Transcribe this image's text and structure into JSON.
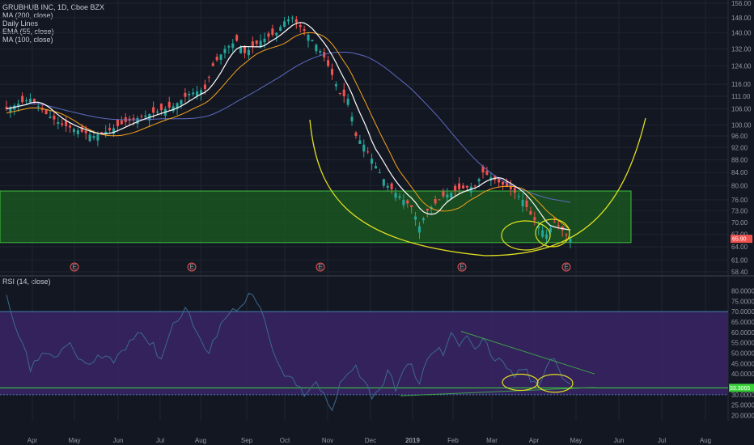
{
  "header": {
    "title": "GRUBHUB INC, 1D, Cboe BZX",
    "indicators": [
      "MA (200, close)",
      "Daily Lines",
      "EMA (55, close)",
      "MA (100, close)"
    ]
  },
  "rsi_panel": {
    "label": "RSI (14, close)"
  },
  "colors": {
    "background": "#131722",
    "up": "#26a69a",
    "down": "#ef5350",
    "green_zone": "#1b5e20",
    "rsi_band": "#3a2566",
    "yellow": "#e0e020",
    "ma200": "#ffffff",
    "ema55": "#f7a21b",
    "ma100": "#5c6bc0",
    "rsi_line": "#3d6a8f"
  },
  "chart_data": [
    {
      "type": "candlestick",
      "title": "GRUBHUB INC, 1D, Cboe BZX",
      "x_ticks": [
        "Apr",
        "May",
        "Jun",
        "Jul",
        "Aug",
        "Sep",
        "Oct",
        "Nov",
        "Dec",
        "2019",
        "Feb",
        "Mar",
        "Apr",
        "May",
        "Jun",
        "Jul",
        "Aug"
      ],
      "y_ticks": [
        "156.00",
        "148.00",
        "140.00",
        "132.00",
        "124.00",
        "116.00",
        "111.00",
        "106.00",
        "100.00",
        "96.00",
        "92.00",
        "88.00",
        "84.00",
        "80.00",
        "76.00",
        "73.00",
        "70.00",
        "67.00",
        "64.00",
        "61.00",
        "58.40"
      ],
      "ylim": [
        58.4,
        156
      ],
      "log_scale": true,
      "last_price": "65.90",
      "support_zone": [
        65.0,
        78.5
      ],
      "earnings_markers": [
        "E",
        "E",
        "E",
        "E",
        "E"
      ],
      "price_path": [
        [
          0,
          106
        ],
        [
          6,
          110
        ],
        [
          10,
          104
        ],
        [
          14,
          100
        ],
        [
          18,
          98
        ],
        [
          22,
          96
        ],
        [
          26,
          98
        ],
        [
          30,
          101
        ],
        [
          36,
          104
        ],
        [
          42,
          107
        ],
        [
          46,
          112
        ],
        [
          50,
          114
        ],
        [
          52,
          124
        ],
        [
          55,
          132
        ],
        [
          58,
          136
        ],
        [
          60,
          130
        ],
        [
          64,
          136
        ],
        [
          68,
          140
        ],
        [
          70,
          146
        ],
        [
          72,
          148
        ],
        [
          74,
          143
        ],
        [
          76,
          139
        ],
        [
          78,
          134
        ],
        [
          80,
          128
        ],
        [
          82,
          120
        ],
        [
          84,
          112
        ],
        [
          86,
          110
        ],
        [
          88,
          96
        ],
        [
          90,
          93
        ],
        [
          93,
          86
        ],
        [
          96,
          80
        ],
        [
          99,
          77
        ],
        [
          102,
          74
        ],
        [
          104,
          69
        ],
        [
          106,
          73
        ],
        [
          110,
          77
        ],
        [
          114,
          79
        ],
        [
          118,
          80
        ],
        [
          120,
          84
        ],
        [
          124,
          81
        ],
        [
          127,
          79
        ],
        [
          130,
          76
        ],
        [
          132,
          72
        ],
        [
          134,
          69
        ],
        [
          136,
          67
        ],
        [
          138,
          70
        ],
        [
          140,
          68
        ],
        [
          142,
          65.9
        ]
      ]
    },
    {
      "type": "line",
      "title": "RSI (14, close)",
      "y_ticks": [
        "80.0000",
        "75.0000",
        "70.0000",
        "65.0000",
        "60.0000",
        "55.0000",
        "50.0000",
        "45.0000",
        "40.0000",
        "35.0000",
        "30.0000",
        "25.0000",
        "20.0000"
      ],
      "ylim": [
        17.5,
        82.5
      ],
      "levels": [
        70,
        30
      ],
      "current_value": "33.3065",
      "values_path": [
        [
          0,
          79
        ],
        [
          3,
          60
        ],
        [
          6,
          42
        ],
        [
          9,
          52
        ],
        [
          12,
          46
        ],
        [
          15,
          55
        ],
        [
          18,
          48
        ],
        [
          21,
          43
        ],
        [
          24,
          50
        ],
        [
          27,
          46
        ],
        [
          30,
          53
        ],
        [
          33,
          62
        ],
        [
          36,
          55
        ],
        [
          39,
          48
        ],
        [
          42,
          64
        ],
        [
          45,
          72
        ],
        [
          48,
          60
        ],
        [
          51,
          48
        ],
        [
          54,
          66
        ],
        [
          57,
          70
        ],
        [
          60,
          76
        ],
        [
          62,
          78
        ],
        [
          64,
          70
        ],
        [
          66,
          58
        ],
        [
          68,
          45
        ],
        [
          70,
          40
        ],
        [
          72,
          36
        ],
        [
          74,
          32
        ],
        [
          76,
          30
        ],
        [
          78,
          36
        ],
        [
          80,
          29
        ],
        [
          82,
          21
        ],
        [
          84,
          35
        ],
        [
          86,
          42
        ],
        [
          88,
          44
        ],
        [
          90,
          36
        ],
        [
          92,
          30
        ],
        [
          94,
          33
        ],
        [
          96,
          40
        ],
        [
          98,
          34
        ],
        [
          100,
          41
        ],
        [
          102,
          44
        ],
        [
          104,
          36
        ],
        [
          106,
          46
        ],
        [
          108,
          52
        ],
        [
          110,
          50
        ],
        [
          112,
          58
        ],
        [
          114,
          55
        ],
        [
          116,
          60
        ],
        [
          118,
          52
        ],
        [
          120,
          57
        ],
        [
          122,
          49
        ],
        [
          124,
          46
        ],
        [
          126,
          41
        ],
        [
          128,
          39
        ],
        [
          130,
          43
        ],
        [
          132,
          37
        ],
        [
          134,
          35
        ],
        [
          136,
          45
        ],
        [
          138,
          48
        ],
        [
          140,
          38
        ],
        [
          142,
          33.3
        ]
      ]
    }
  ]
}
